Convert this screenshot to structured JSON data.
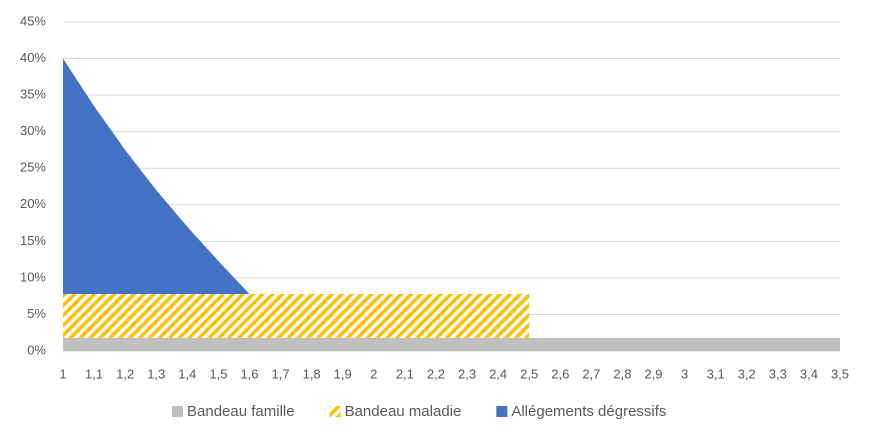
{
  "chart_data": {
    "type": "stacked-area",
    "x": [
      1,
      1.1,
      1.2,
      1.3,
      1.4,
      1.5,
      1.6,
      1.7,
      1.8,
      1.9,
      2,
      2.1,
      2.2,
      2.3,
      2.4,
      2.5,
      2.6,
      2.7,
      2.8,
      2.9,
      3,
      3.1,
      3.2,
      3.3,
      3.4,
      3.5
    ],
    "series": [
      {
        "name": "Bandeau famille",
        "color": "#bfbfbf",
        "pattern": "solid",
        "values": [
          1.8,
          1.8,
          1.8,
          1.8,
          1.8,
          1.8,
          1.8,
          1.8,
          1.8,
          1.8,
          1.8,
          1.8,
          1.8,
          1.8,
          1.8,
          1.8,
          1.8,
          1.8,
          1.8,
          1.8,
          1.8,
          1.8,
          1.8,
          1.8,
          1.8,
          1.8
        ]
      },
      {
        "name": "Bandeau maladie",
        "color": "#ffc000",
        "pattern": "diagonal-hatch",
        "values": [
          6,
          6,
          6,
          6,
          6,
          6,
          6,
          6,
          6,
          6,
          6,
          6,
          6,
          6,
          6,
          6,
          null,
          null,
          null,
          null,
          null,
          null,
          null,
          null,
          null,
          null
        ]
      },
      {
        "name": "Allégements dégressifs",
        "color": "#4472c4",
        "pattern": "solid",
        "values": [
          32.2,
          25.7,
          19.7,
          14.2,
          9.2,
          4.5,
          0,
          null,
          null,
          null,
          null,
          null,
          null,
          null,
          null,
          null,
          null,
          null,
          null,
          null,
          null,
          null,
          null,
          null,
          null,
          null
        ]
      }
    ],
    "xlim": [
      1,
      3.5
    ],
    "xticks": [
      1,
      {
        "value": 1.1,
        "label": "1,1"
      },
      {
        "value": 1.2,
        "label": "1,2"
      },
      {
        "value": 1.3,
        "label": "1,3"
      },
      {
        "value": 1.4,
        "label": "1,4"
      },
      {
        "value": 1.5,
        "label": "1,5"
      },
      {
        "value": 1.6,
        "label": "1,6"
      },
      {
        "value": 1.7,
        "label": "1,7"
      },
      {
        "value": 1.8,
        "label": "1,8"
      },
      {
        "value": 1.9,
        "label": "1,9"
      },
      2,
      {
        "value": 2.1,
        "label": "2,1"
      },
      {
        "value": 2.2,
        "label": "2,2"
      },
      {
        "value": 2.3,
        "label": "2,3"
      },
      {
        "value": 2.4,
        "label": "2,4"
      },
      {
        "value": 2.5,
        "label": "2,5"
      },
      {
        "value": 2.6,
        "label": "2,6"
      },
      {
        "value": 2.7,
        "label": "2,7"
      },
      {
        "value": 2.8,
        "label": "2,8"
      },
      {
        "value": 2.9,
        "label": "2,9"
      },
      3,
      {
        "value": 3.1,
        "label": "3,1"
      },
      {
        "value": 3.2,
        "label": "3,2"
      },
      {
        "value": 3.3,
        "label": "3,3"
      },
      {
        "value": 3.4,
        "label": "3,4"
      },
      {
        "value": 3.5,
        "label": "3,5"
      }
    ],
    "ylim": [
      0,
      45
    ],
    "yticks": [
      {
        "value": 0,
        "label": "0%"
      },
      {
        "value": 5,
        "label": "5%"
      },
      {
        "value": 10,
        "label": "10%"
      },
      {
        "value": 15,
        "label": "15%"
      },
      {
        "value": 20,
        "label": "20%"
      },
      {
        "value": 25,
        "label": "25%"
      },
      {
        "value": 30,
        "label": "30%"
      },
      {
        "value": 35,
        "label": "35%"
      },
      {
        "value": 40,
        "label": "40%"
      },
      {
        "value": 45,
        "label": "45%"
      }
    ],
    "grid": true,
    "legend": "bottom"
  }
}
